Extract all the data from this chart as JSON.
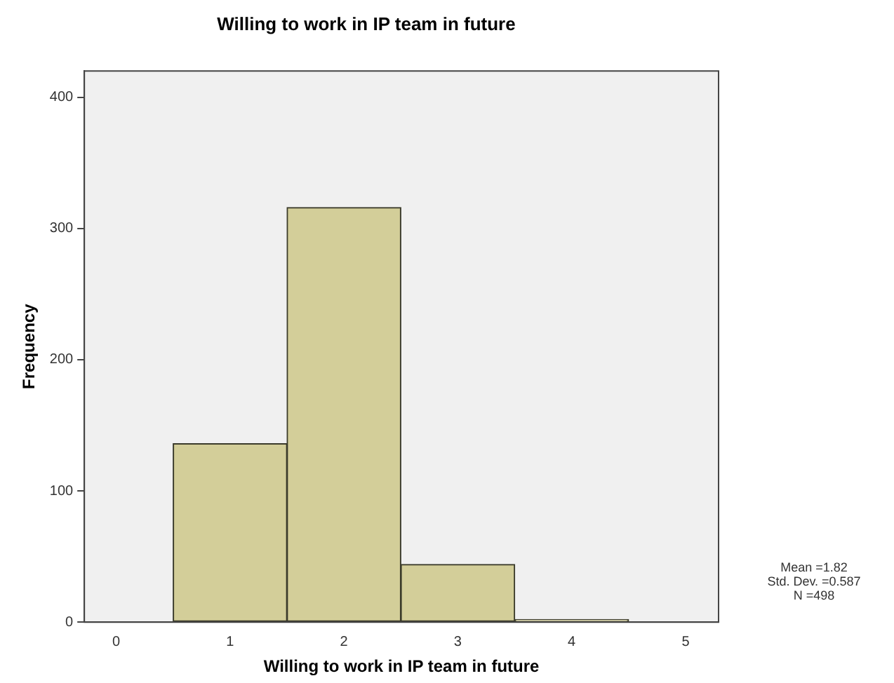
{
  "chart_data": {
    "type": "histogram",
    "title": "Willing to work in IP team in future",
    "xlabel": "Willing to work in IP team in future",
    "ylabel": "Frequency",
    "bins": [
      0.5,
      1.5,
      2.5,
      3.5,
      4.5
    ],
    "values": [
      136,
      316,
      44,
      2
    ],
    "color": "#d3ce99",
    "xlim": [
      -0.28,
      5.29
    ],
    "xticks": [
      0,
      1,
      2,
      3,
      4,
      5
    ],
    "ylim": [
      0,
      420
    ],
    "yticks": [
      0,
      100,
      200,
      300,
      400
    ],
    "grid": false,
    "legend": false,
    "annotations": [
      "Mean =1.82",
      "Std. Dev. =0.587",
      "N =498"
    ]
  }
}
